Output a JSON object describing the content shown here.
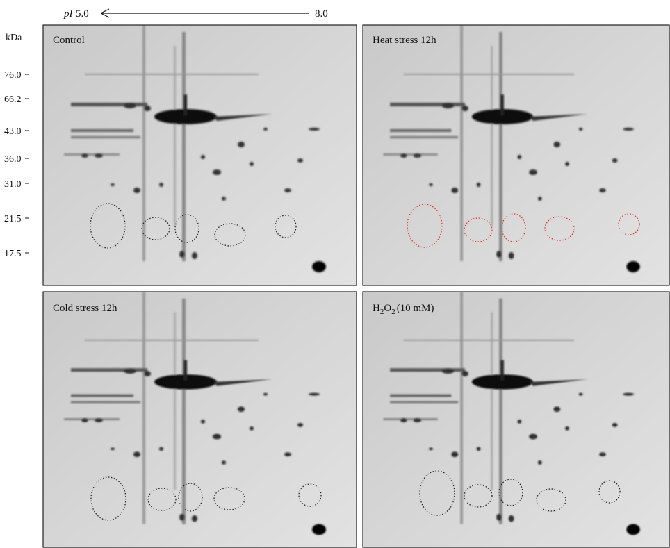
{
  "header": {
    "pi_label": "pI",
    "pi_start": "5.0",
    "pi_end": "8.0",
    "mass_unit": "kDa"
  },
  "markers": [
    "76.0",
    "66.2",
    "43.0",
    "36.0",
    "31.0",
    "21.5",
    "17.5"
  ],
  "panels": [
    {
      "title": [
        "Control"
      ]
    },
    {
      "title": [
        "Heat stress 12h"
      ]
    },
    {
      "title": [
        "Cold stress 12h"
      ]
    },
    {
      "title": [
        "H",
        "2",
        "O",
        "2",
        "(10 mM)"
      ]
    }
  ]
}
